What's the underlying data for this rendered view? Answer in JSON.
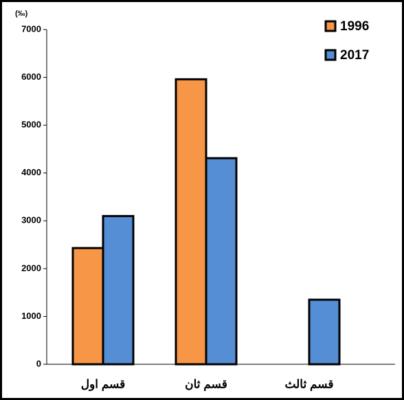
{
  "chart_data": {
    "type": "bar",
    "y_label": "(‰)",
    "categories": [
      "قسم اول",
      "قسم ثان",
      "قسم ثالث"
    ],
    "series": [
      {
        "name": "1996",
        "color": "#f79646",
        "values": [
          2430,
          5960,
          null
        ]
      },
      {
        "name": "2017",
        "color": "#558ed5",
        "values": [
          3100,
          4310,
          1350
        ]
      }
    ],
    "ylim": [
      0,
      7000
    ],
    "yticks": [
      0,
      1000,
      2000,
      3000,
      4000,
      5000,
      6000,
      7000
    ],
    "legend": "top-right"
  }
}
